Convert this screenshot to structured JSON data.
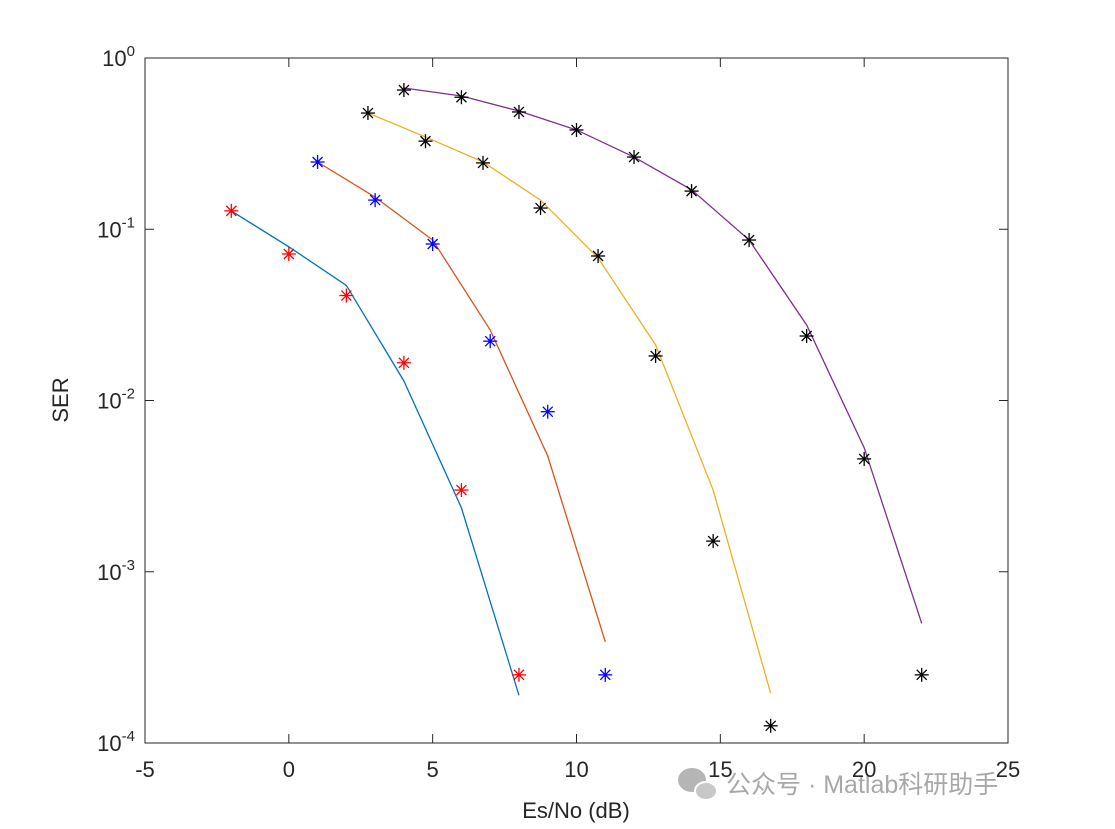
{
  "chart_data": {
    "type": "line",
    "xlabel": "Es/No (dB)",
    "ylabel": "SER",
    "log_y": true,
    "xlim": [
      -5,
      25
    ],
    "xticks": [
      -5,
      0,
      5,
      10,
      15,
      20,
      25
    ],
    "ylim": [
      0.0001,
      1
    ],
    "yticks": [
      {
        "value": 0.0001,
        "label": "10^-4"
      },
      {
        "value": 0.001,
        "label": "10^-3"
      },
      {
        "value": 0.01,
        "label": "10^-2"
      },
      {
        "value": 0.1,
        "label": "10^-1"
      },
      {
        "value": 1,
        "label": "10^0"
      }
    ],
    "series": [
      {
        "style": "line",
        "color": "#0072bd",
        "x": [
          -2,
          0,
          2,
          4,
          6,
          8
        ],
        "values": [
          0.128,
          0.079,
          0.047,
          0.013,
          0.00236,
          0.00019
        ]
      },
      {
        "style": "marker",
        "color": "#ff0000",
        "x": [
          -2,
          0,
          2,
          4,
          6,
          8
        ],
        "values": [
          0.128,
          0.0717,
          0.041,
          0.0166,
          0.003,
          0.00025
        ]
      },
      {
        "style": "line",
        "color": "#d95319",
        "x": [
          1,
          3,
          5,
          7,
          9,
          11
        ],
        "values": [
          0.247,
          0.154,
          0.0865,
          0.0258,
          0.00474,
          0.00039
        ]
      },
      {
        "style": "marker",
        "color": "#0000ff",
        "x": [
          1,
          3,
          5,
          7,
          9,
          11
        ],
        "values": [
          0.247,
          0.148,
          0.082,
          0.0222,
          0.0086,
          0.00025
        ]
      },
      {
        "style": "line",
        "color": "#edb120",
        "x": [
          2.75,
          4.75,
          6.75,
          8.75,
          10.75,
          12.75,
          14.75,
          16.75
        ],
        "values": [
          0.477,
          0.346,
          0.247,
          0.148,
          0.068,
          0.0211,
          0.003,
          0.000195
        ]
      },
      {
        "style": "marker",
        "color": "#000000",
        "x": [
          2.75,
          4.75,
          6.75,
          8.75,
          10.75,
          12.75,
          14.75,
          16.75
        ],
        "values": [
          0.477,
          0.327,
          0.244,
          0.133,
          0.0698,
          0.0182,
          0.00151,
          0.000126
        ]
      },
      {
        "style": "line",
        "color": "#7e2f8e",
        "x": [
          4,
          6,
          8,
          10,
          12,
          14,
          16,
          18,
          20,
          22
        ],
        "values": [
          0.668,
          0.6,
          0.49,
          0.38,
          0.264,
          0.17,
          0.0865,
          0.0276,
          0.0053,
          0.0005
        ]
      },
      {
        "style": "marker",
        "color": "#000000",
        "x": [
          4,
          6,
          8,
          10,
          12,
          14,
          16,
          18,
          20,
          22
        ],
        "values": [
          0.65,
          0.59,
          0.484,
          0.38,
          0.264,
          0.167,
          0.0865,
          0.0238,
          0.00456,
          0.00025
        ]
      }
    ],
    "watermark": "公众号 · Matlab科研助手"
  }
}
